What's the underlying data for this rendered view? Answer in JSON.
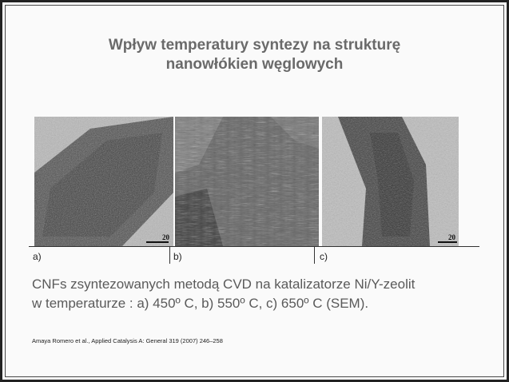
{
  "slide": {
    "title_line1": "Wpływ temperatury syntezy na strukturę",
    "title_line2": "nanowłókien węglowych",
    "panels": [
      {
        "label": "a)",
        "scale_text": "20"
      },
      {
        "label": "b)",
        "scale_text": ""
      },
      {
        "label": "c)",
        "scale_text": "20"
      }
    ],
    "caption_line1": "CNFs zsyntezowanych metodą CVD na katalizatorze Ni/Y-zeolit",
    "caption_line2": "w temperaturze : a) 450º C, b) 550º C, c) 650º C (SEM).",
    "reference": "Amaya Romero et al., Applied Catalysis A: General 319 (2007) 246–258"
  }
}
